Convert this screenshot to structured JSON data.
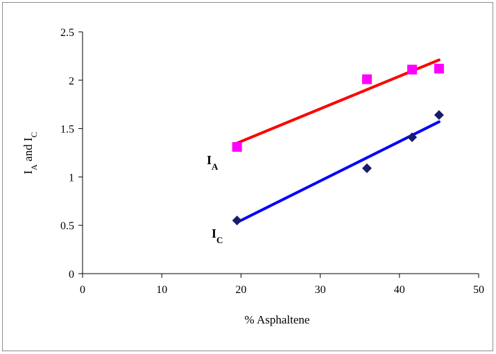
{
  "chart_data": {
    "type": "scatter",
    "xlabel": "% Asphaltene",
    "ylabel": {
      "main": "I",
      "sub1": "A",
      "mid": " and I",
      "sub2": "C"
    },
    "xlim": [
      0,
      50
    ],
    "ylim": [
      0,
      2.5
    ],
    "xticks": [
      0,
      10,
      20,
      30,
      40,
      50
    ],
    "yticks": [
      0,
      0.5,
      1,
      1.5,
      2,
      2.5
    ],
    "xtick_labels": [
      "0",
      "10",
      "20",
      "30",
      "40",
      "50"
    ],
    "ytick_labels": [
      "0",
      "0.5",
      "1",
      "1.5",
      "2",
      "2.5"
    ],
    "grid": false,
    "legend": "none",
    "series": [
      {
        "name": "IA",
        "label": {
          "main": "I",
          "sub": "A"
        },
        "marker": "square",
        "marker_color": "#ff00ff",
        "line_color": "#ff0000",
        "x": [
          19.5,
          35.9,
          41.6,
          45.0
        ],
        "y": [
          1.31,
          2.01,
          2.11,
          2.12
        ],
        "trendline": {
          "x": [
            19.5,
            45.0
          ],
          "y": [
            1.35,
            2.21
          ]
        }
      },
      {
        "name": "IC",
        "label": {
          "main": "I",
          "sub": "C"
        },
        "marker": "diamond",
        "marker_color": "#1a1a6e",
        "line_color": "#0000ff",
        "x": [
          19.5,
          35.9,
          41.6,
          45.0
        ],
        "y": [
          0.55,
          1.09,
          1.41,
          1.64
        ],
        "trendline": {
          "x": [
            19.5,
            45.0
          ],
          "y": [
            0.53,
            1.57
          ]
        }
      }
    ]
  }
}
